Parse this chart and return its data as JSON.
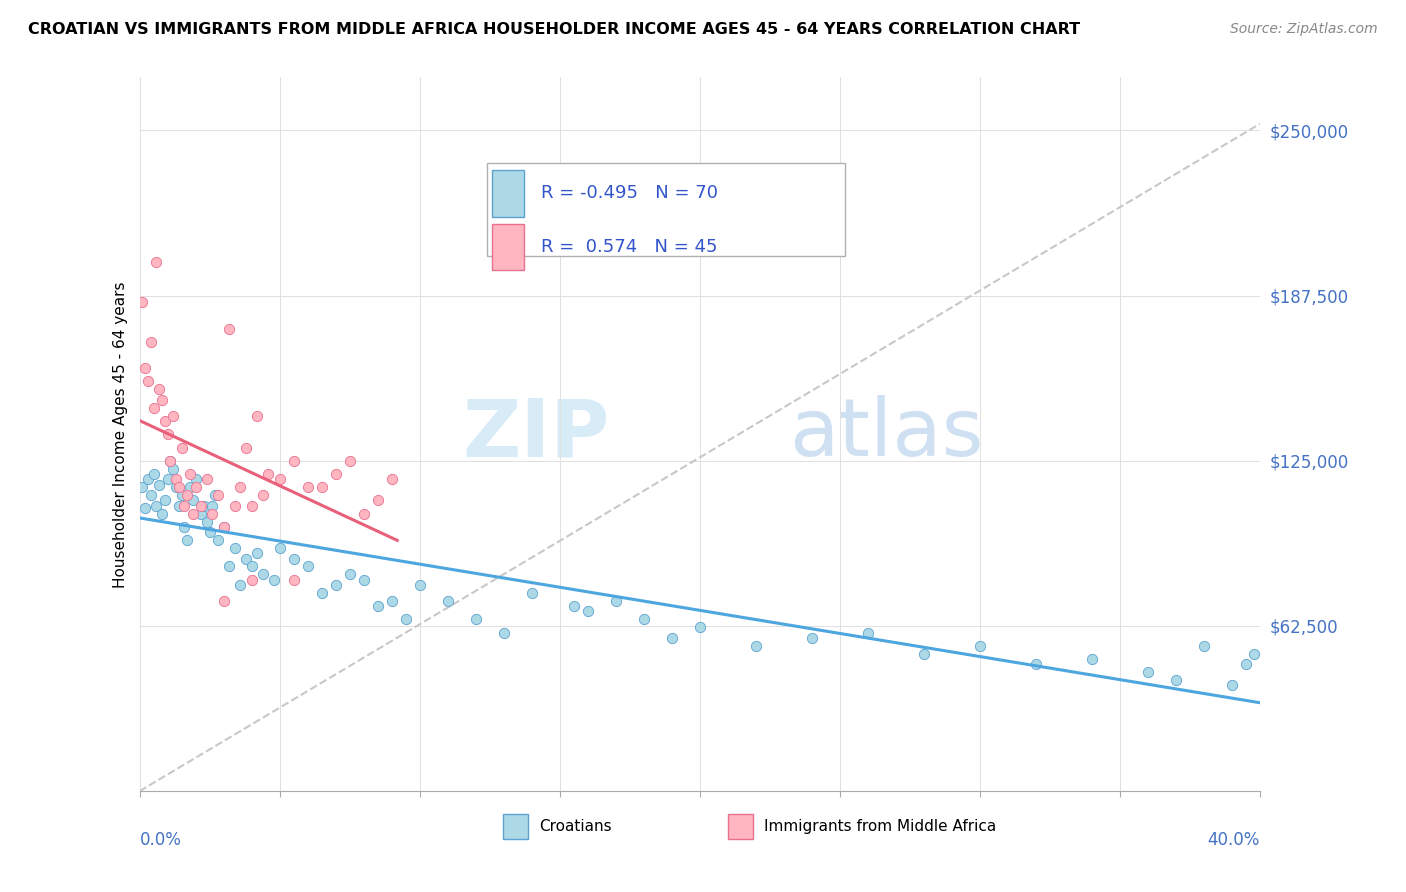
{
  "title": "CROATIAN VS IMMIGRANTS FROM MIDDLE AFRICA HOUSEHOLDER INCOME AGES 45 - 64 YEARS CORRELATION CHART",
  "source": "Source: ZipAtlas.com",
  "ylabel": "Householder Income Ages 45 - 64 years",
  "ytick_labels": [
    "$62,500",
    "$125,000",
    "$187,500",
    "$250,000"
  ],
  "ytick_values": [
    62500,
    125000,
    187500,
    250000
  ],
  "xmin": 0.0,
  "xmax": 0.4,
  "ymin": 0,
  "ymax": 270000,
  "watermark_zip": "ZIP",
  "watermark_atlas": "atlas",
  "legend_line1": "R = -0.495   N = 70",
  "legend_line2": "R =  0.574   N = 45",
  "croatian_fill": "#add8e6",
  "croatian_edge": "#5ba3d0",
  "immigrant_fill": "#ffb6c1",
  "immigrant_edge": "#e87090",
  "croatian_line_color": "#4da6e0",
  "immigrant_line_color": "#e8607a",
  "ref_line_color": "#c8c8c8",
  "legend_text_color": "#3355cc",
  "ytick_color": "#4472c4",
  "xlabel_color": "#4472c4",
  "croatian_scatter": [
    [
      0.001,
      115000
    ],
    [
      0.002,
      107000
    ],
    [
      0.003,
      118000
    ],
    [
      0.004,
      112000
    ],
    [
      0.005,
      120000
    ],
    [
      0.006,
      108000
    ],
    [
      0.007,
      116000
    ],
    [
      0.008,
      105000
    ],
    [
      0.009,
      110000
    ],
    [
      0.01,
      118000
    ],
    [
      0.011,
      125000
    ],
    [
      0.012,
      122000
    ],
    [
      0.013,
      115000
    ],
    [
      0.014,
      108000
    ],
    [
      0.015,
      112000
    ],
    [
      0.016,
      100000
    ],
    [
      0.017,
      95000
    ],
    [
      0.018,
      115000
    ],
    [
      0.019,
      110000
    ],
    [
      0.02,
      118000
    ],
    [
      0.022,
      105000
    ],
    [
      0.023,
      108000
    ],
    [
      0.024,
      102000
    ],
    [
      0.025,
      98000
    ],
    [
      0.026,
      108000
    ],
    [
      0.027,
      112000
    ],
    [
      0.028,
      95000
    ],
    [
      0.03,
      100000
    ],
    [
      0.032,
      85000
    ],
    [
      0.034,
      92000
    ],
    [
      0.036,
      78000
    ],
    [
      0.038,
      88000
    ],
    [
      0.04,
      85000
    ],
    [
      0.042,
      90000
    ],
    [
      0.044,
      82000
    ],
    [
      0.048,
      80000
    ],
    [
      0.05,
      92000
    ],
    [
      0.055,
      88000
    ],
    [
      0.06,
      85000
    ],
    [
      0.065,
      75000
    ],
    [
      0.07,
      78000
    ],
    [
      0.075,
      82000
    ],
    [
      0.08,
      80000
    ],
    [
      0.085,
      70000
    ],
    [
      0.09,
      72000
    ],
    [
      0.095,
      65000
    ],
    [
      0.1,
      78000
    ],
    [
      0.11,
      72000
    ],
    [
      0.12,
      65000
    ],
    [
      0.13,
      60000
    ],
    [
      0.14,
      75000
    ],
    [
      0.155,
      70000
    ],
    [
      0.16,
      68000
    ],
    [
      0.17,
      72000
    ],
    [
      0.18,
      65000
    ],
    [
      0.19,
      58000
    ],
    [
      0.2,
      62000
    ],
    [
      0.22,
      55000
    ],
    [
      0.24,
      58000
    ],
    [
      0.26,
      60000
    ],
    [
      0.28,
      52000
    ],
    [
      0.3,
      55000
    ],
    [
      0.32,
      48000
    ],
    [
      0.34,
      50000
    ],
    [
      0.36,
      45000
    ],
    [
      0.37,
      42000
    ],
    [
      0.38,
      55000
    ],
    [
      0.39,
      40000
    ],
    [
      0.395,
      48000
    ],
    [
      0.398,
      52000
    ]
  ],
  "immigrant_scatter": [
    [
      0.001,
      185000
    ],
    [
      0.002,
      160000
    ],
    [
      0.003,
      155000
    ],
    [
      0.004,
      170000
    ],
    [
      0.005,
      145000
    ],
    [
      0.006,
      200000
    ],
    [
      0.007,
      152000
    ],
    [
      0.008,
      148000
    ],
    [
      0.009,
      140000
    ],
    [
      0.01,
      135000
    ],
    [
      0.011,
      125000
    ],
    [
      0.012,
      142000
    ],
    [
      0.013,
      118000
    ],
    [
      0.014,
      115000
    ],
    [
      0.015,
      130000
    ],
    [
      0.016,
      108000
    ],
    [
      0.017,
      112000
    ],
    [
      0.018,
      120000
    ],
    [
      0.019,
      105000
    ],
    [
      0.02,
      115000
    ],
    [
      0.022,
      108000
    ],
    [
      0.024,
      118000
    ],
    [
      0.026,
      105000
    ],
    [
      0.028,
      112000
    ],
    [
      0.03,
      100000
    ],
    [
      0.032,
      175000
    ],
    [
      0.034,
      108000
    ],
    [
      0.036,
      115000
    ],
    [
      0.038,
      130000
    ],
    [
      0.04,
      108000
    ],
    [
      0.042,
      142000
    ],
    [
      0.044,
      112000
    ],
    [
      0.046,
      120000
    ],
    [
      0.05,
      118000
    ],
    [
      0.055,
      125000
    ],
    [
      0.06,
      115000
    ],
    [
      0.065,
      115000
    ],
    [
      0.07,
      120000
    ],
    [
      0.075,
      125000
    ],
    [
      0.08,
      105000
    ],
    [
      0.085,
      110000
    ],
    [
      0.09,
      118000
    ],
    [
      0.055,
      80000
    ],
    [
      0.04,
      80000
    ],
    [
      0.03,
      72000
    ]
  ]
}
